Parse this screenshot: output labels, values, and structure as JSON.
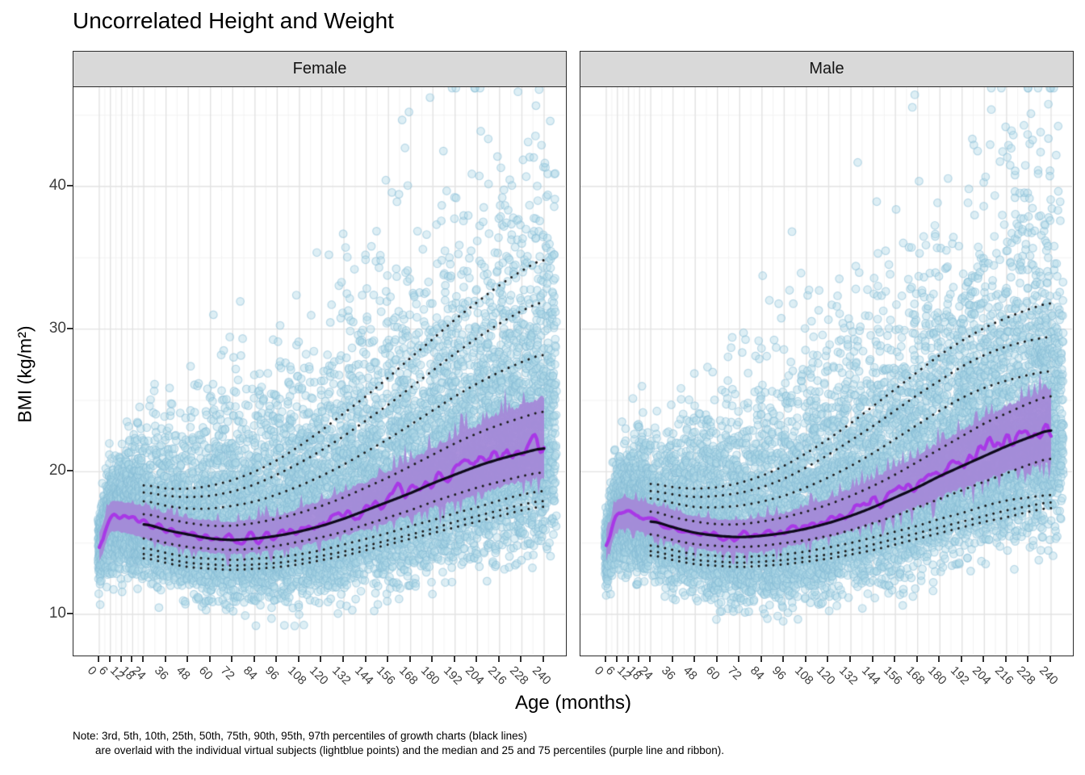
{
  "title": "Uncorrelated Height and Weight",
  "note": {
    "line1": "Note: 3rd, 5th, 10th, 25th, 50th, 75th, 90th, 95th, 97th percentiles of growth charts (black lines)",
    "line2": "are overlaid with the individual virtual subjects (lightblue points) and the median and 25 and 75 percentiles (purple line and ribbon)."
  },
  "axes": {
    "x": {
      "title": "Age (months)",
      "breaks": [
        0,
        6,
        12,
        18,
        24,
        36,
        48,
        60,
        72,
        84,
        96,
        108,
        120,
        132,
        144,
        156,
        168,
        180,
        192,
        204,
        216,
        228,
        240
      ],
      "tick_labels": [
        "0",
        "6",
        "12",
        "18",
        "24",
        "36",
        "48",
        "60",
        "72",
        "84",
        "96",
        "108",
        "120",
        "132",
        "144",
        "156",
        "168",
        "180",
        "192",
        "204",
        "216",
        "228",
        "240"
      ]
    },
    "y": {
      "title": "BMI (kg/m²)",
      "breaks": [
        10,
        20,
        30,
        40
      ],
      "tick_labels": [
        "10",
        "20",
        "30",
        "40"
      ],
      "minor_breaks": [
        15,
        25,
        35,
        45
      ]
    }
  },
  "chart_data": {
    "type": "scatter",
    "title": "Uncorrelated Height and Weight",
    "xlabel": "Age (months)",
    "ylabel": "BMI (kg/m²)",
    "xlim": [
      -14,
      253
    ],
    "ylim": [
      7.0,
      47.0
    ],
    "grid": true,
    "legend": "none (described in note)",
    "percentile_labels": [
      "3rd",
      "5th",
      "10th",
      "25th",
      "50th",
      "75th",
      "90th",
      "95th",
      "97th"
    ],
    "growth_ages_months": [
      24,
      36,
      48,
      60,
      72,
      84,
      96,
      108,
      120,
      132,
      144,
      156,
      168,
      180,
      192,
      204,
      216,
      228,
      240
    ],
    "sim_ages_months": [
      0,
      2,
      4,
      7,
      10,
      14,
      18,
      21,
      24,
      36,
      48,
      60,
      72,
      84,
      96,
      120,
      144,
      168,
      192,
      216,
      240
    ],
    "facets": [
      {
        "label": "Female",
        "seed": 20240,
        "growth_percentiles": {
          "p3": [
            14.0,
            13.6,
            13.3,
            13.2,
            13.1,
            13.2,
            13.3,
            13.5,
            13.8,
            14.1,
            14.5,
            14.9,
            15.3,
            15.7,
            16.1,
            16.5,
            16.9,
            17.3,
            17.6
          ],
          "p5": [
            14.3,
            13.9,
            13.6,
            13.5,
            13.4,
            13.5,
            13.6,
            13.8,
            14.1,
            14.4,
            14.8,
            15.2,
            15.6,
            16.0,
            16.5,
            16.9,
            17.3,
            17.7,
            18.0
          ],
          "p10": [
            14.7,
            14.3,
            14.0,
            13.9,
            13.8,
            13.9,
            14.0,
            14.2,
            14.5,
            14.9,
            15.3,
            15.7,
            16.2,
            16.6,
            17.1,
            17.5,
            18.0,
            18.4,
            18.7
          ],
          "p25": [
            15.4,
            15.0,
            14.7,
            14.6,
            14.5,
            14.6,
            14.8,
            15.1,
            15.4,
            15.8,
            16.3,
            16.8,
            17.3,
            17.9,
            18.4,
            18.9,
            19.3,
            19.7,
            20.0
          ],
          "p50": [
            16.4,
            15.9,
            15.6,
            15.3,
            15.2,
            15.3,
            15.5,
            15.8,
            16.2,
            16.7,
            17.3,
            17.9,
            18.5,
            19.2,
            19.8,
            20.4,
            20.9,
            21.3,
            21.7
          ],
          "p75": [
            17.1,
            16.7,
            16.4,
            16.2,
            16.2,
            16.4,
            16.7,
            17.1,
            17.6,
            18.2,
            18.9,
            19.6,
            20.4,
            21.2,
            22.0,
            22.7,
            23.3,
            23.8,
            24.3
          ],
          "p90": [
            18.0,
            17.6,
            17.4,
            17.4,
            17.6,
            17.9,
            18.4,
            19.0,
            19.7,
            20.5,
            21.4,
            22.3,
            23.3,
            24.3,
            25.3,
            26.2,
            27.0,
            27.7,
            28.3
          ],
          "p95": [
            18.6,
            18.3,
            18.2,
            18.3,
            18.6,
            19.1,
            19.8,
            20.6,
            21.5,
            22.5,
            23.6,
            24.7,
            25.9,
            27.1,
            28.3,
            29.4,
            30.4,
            31.3,
            32.0
          ],
          "p97": [
            19.1,
            18.8,
            18.8,
            19.0,
            19.4,
            20.0,
            20.8,
            21.8,
            22.9,
            24.1,
            25.3,
            26.6,
            28.0,
            29.3,
            30.7,
            31.9,
            33.1,
            34.1,
            35.0
          ]
        },
        "sim_median": [
          12.9,
          15.8,
          16.6,
          17.0,
          16.9,
          16.8,
          16.7,
          16.6,
          16.4,
          15.9,
          15.6,
          15.4,
          15.3,
          15.4,
          15.6,
          16.3,
          17.4,
          18.7,
          20.0,
          21.2,
          22.1
        ],
        "sim_p25": [
          12.0,
          14.8,
          15.6,
          16.0,
          15.9,
          15.8,
          15.7,
          15.5,
          15.4,
          14.9,
          14.6,
          14.4,
          14.3,
          14.4,
          14.6,
          15.2,
          16.1,
          17.1,
          18.1,
          19.1,
          19.8
        ],
        "sim_p75": [
          13.8,
          16.8,
          17.6,
          18.0,
          17.9,
          17.8,
          17.7,
          17.6,
          17.5,
          17.0,
          16.7,
          16.5,
          16.4,
          16.6,
          16.8,
          17.9,
          19.2,
          20.7,
          22.3,
          23.9,
          25.1
        ]
      },
      {
        "label": "Male",
        "seed": 7771,
        "growth_percentiles": {
          "p3": [
            14.2,
            13.8,
            13.5,
            13.4,
            13.3,
            13.4,
            13.5,
            13.7,
            13.9,
            14.2,
            14.5,
            14.9,
            15.3,
            15.7,
            16.1,
            16.5,
            16.8,
            17.2,
            17.5
          ],
          "p5": [
            14.5,
            14.1,
            13.8,
            13.7,
            13.6,
            13.7,
            13.8,
            14.0,
            14.2,
            14.5,
            14.9,
            15.3,
            15.7,
            16.1,
            16.5,
            16.9,
            17.3,
            17.6,
            17.9
          ],
          "p10": [
            14.9,
            14.5,
            14.2,
            14.1,
            14.0,
            14.1,
            14.2,
            14.4,
            14.7,
            15.0,
            15.4,
            15.8,
            16.2,
            16.7,
            17.1,
            17.6,
            18.0,
            18.2,
            18.4
          ],
          "p25": [
            15.7,
            15.2,
            14.9,
            14.8,
            14.7,
            14.8,
            15.0,
            15.2,
            15.5,
            15.9,
            16.4,
            16.9,
            17.5,
            18.1,
            18.7,
            19.3,
            19.9,
            20.5,
            21.0
          ],
          "p50": [
            16.6,
            16.1,
            15.7,
            15.5,
            15.4,
            15.5,
            15.7,
            16.0,
            16.4,
            16.9,
            17.5,
            18.2,
            18.9,
            19.7,
            20.4,
            21.1,
            21.8,
            22.4,
            23.0
          ],
          "p75": [
            17.3,
            16.8,
            16.5,
            16.3,
            16.3,
            16.5,
            16.8,
            17.2,
            17.7,
            18.3,
            19.0,
            19.8,
            20.7,
            21.6,
            22.5,
            23.4,
            24.1,
            24.8,
            25.4
          ],
          "p90": [
            18.2,
            17.8,
            17.5,
            17.5,
            17.6,
            17.9,
            18.3,
            18.9,
            19.6,
            20.4,
            21.3,
            22.3,
            23.3,
            24.3,
            25.2,
            25.9,
            26.4,
            26.8,
            27.1
          ],
          "p95": [
            18.7,
            18.4,
            18.2,
            18.3,
            18.5,
            18.9,
            19.5,
            20.3,
            21.2,
            22.2,
            23.2,
            24.3,
            25.4,
            26.4,
            27.4,
            28.2,
            28.8,
            29.2,
            29.5
          ],
          "p97": [
            19.2,
            18.9,
            18.8,
            18.9,
            19.2,
            19.7,
            20.4,
            21.3,
            22.3,
            23.4,
            24.6,
            25.8,
            27.0,
            28.2,
            29.2,
            30.1,
            30.8,
            31.4,
            31.9
          ]
        },
        "sim_median": [
          13.0,
          16.0,
          16.8,
          17.2,
          17.1,
          17.0,
          16.9,
          16.8,
          16.6,
          16.1,
          15.7,
          15.5,
          15.4,
          15.5,
          15.8,
          16.6,
          17.8,
          19.2,
          20.7,
          22.1,
          23.2
        ],
        "sim_p25": [
          12.1,
          15.0,
          15.8,
          16.2,
          16.1,
          16.0,
          15.9,
          15.7,
          15.6,
          15.1,
          14.7,
          14.5,
          14.4,
          14.5,
          14.8,
          15.5,
          16.5,
          17.7,
          19.0,
          20.1,
          20.9
        ],
        "sim_p75": [
          13.9,
          17.0,
          17.8,
          18.2,
          18.1,
          18.0,
          17.9,
          17.8,
          17.7,
          17.2,
          16.8,
          16.6,
          16.5,
          16.7,
          17.0,
          18.0,
          19.4,
          21.0,
          22.8,
          24.5,
          25.7
        ]
      }
    ],
    "scatter_sim": {
      "infant_points_per_month": 70,
      "points_per_month": 42,
      "tail_points_per_month": 36,
      "max_month": 246,
      "point_radius": 4.8,
      "s_up_base": 0.07,
      "s_up_gain": 0.2,
      "s_up_tau": 60,
      "s_dn_base": 0.1,
      "s_dn_gain": 0.07,
      "s_dn_tau": 80,
      "bmi_min": 8.6,
      "bmi_max": 46.9
    },
    "style": {
      "point_fill": "#ADD8E6",
      "point_fill_alpha": 0.4,
      "point_stroke": "#86BCD6",
      "point_stroke_alpha": 0.5,
      "ribbon_fill": "#A489D8",
      "ribbon_alpha": 0.95,
      "median_line": "#A838E6",
      "percentile_dotted": "#1C1C1C",
      "percentile_solid": "#0D0A1A",
      "strip_bg": "#D9D9D9",
      "panel_border": "#2B2B2B",
      "grid_major": "#E2E2E2",
      "grid_minor": "#F2F2F2",
      "axis_text": "#404040"
    }
  }
}
